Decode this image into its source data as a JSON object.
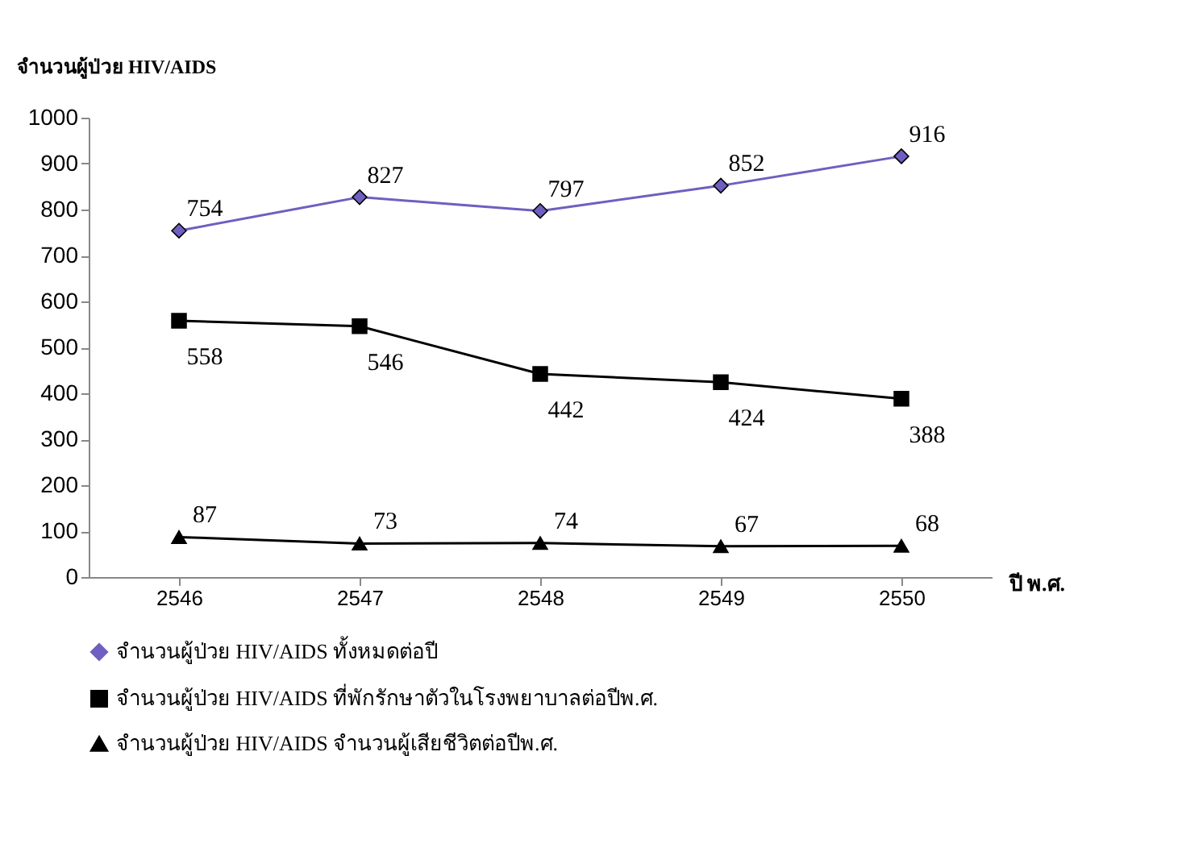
{
  "chart_data": {
    "type": "line",
    "ylabel": "จำนวนผู้ป่วย HIV/AIDS",
    "xlabel": "ปี พ.ศ.",
    "categories": [
      "2546",
      "2547",
      "2548",
      "2549",
      "2550"
    ],
    "series": [
      {
        "name": "จำนวนผู้ป่วย HIV/AIDS ทั้งหมดต่อปี",
        "color": "#6f5fc0",
        "marker": "diamond",
        "values": [
          754,
          827,
          797,
          852,
          916
        ]
      },
      {
        "name": "จำนวนผู้ป่วย HIV/AIDS ที่พักรักษาตัวในโรงพยาบาลต่อปีพ.ศ.",
        "color": "#000000",
        "marker": "square",
        "values": [
          558,
          546,
          442,
          424,
          388
        ]
      },
      {
        "name": "จำนวนผู้ป่วย HIV/AIDS จำนวนผู้เสียชีวิตต่อปีพ.ศ.",
        "color": "#000000",
        "marker": "triangle",
        "values": [
          87,
          73,
          74,
          67,
          68
        ]
      }
    ],
    "ylim": [
      0,
      1000
    ],
    "yticks": [
      0,
      100,
      200,
      300,
      400,
      500,
      600,
      700,
      800,
      900,
      1000
    ],
    "grid": false,
    "legend": "bottom",
    "data_labels": true,
    "line_style": "solid"
  }
}
